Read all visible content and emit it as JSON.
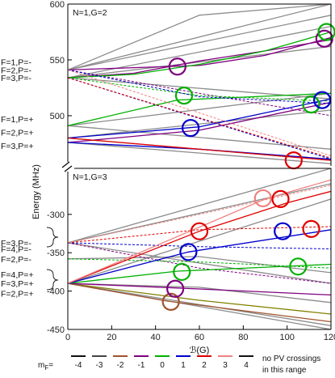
{
  "chart_data": [
    {
      "type": "line",
      "panel": "top",
      "panel_label": "N=1,G=2",
      "xlim": [
        0,
        120
      ],
      "ylim": [
        455,
        600
      ],
      "y_ticks": [
        600,
        550,
        500
      ],
      "grid": false,
      "state_labels": [
        {
          "text": "F=1,P=-",
          "y": 548
        },
        {
          "text": "F=2,P=-",
          "y": 541
        },
        {
          "text": "F=3,P=-",
          "y": 534
        },
        {
          "text": "F=1,P=+",
          "y": 497
        },
        {
          "text": "F=2,P=+",
          "y": 485
        },
        {
          "text": "F=3,P=+",
          "y": 473
        }
      ],
      "series": [
        {
          "color": "#8c8c8c",
          "dashed": false,
          "x": [
            0,
            120
          ],
          "y": [
            541,
            600
          ]
        },
        {
          "color": "#8c8c8c",
          "dashed": false,
          "x": [
            0,
            120
          ],
          "y": [
            541,
            590
          ]
        },
        {
          "color": "#8c8c8c",
          "dashed": false,
          "x": [
            0,
            120
          ],
          "y": [
            534,
            580
          ]
        },
        {
          "color": "#8c8c8c",
          "dashed": false,
          "x": [
            0,
            120
          ],
          "y": [
            534,
            562
          ]
        },
        {
          "color": "#8c8c8c",
          "dashed": false,
          "x": [
            0,
            120
          ],
          "y": [
            534,
            515
          ]
        },
        {
          "color": "#8c8c8c",
          "dashed": false,
          "x": [
            0,
            120
          ],
          "y": [
            491,
            520
          ]
        },
        {
          "color": "#8c8c8c",
          "dashed": false,
          "x": [
            0,
            120
          ],
          "y": [
            480,
            505
          ]
        },
        {
          "color": "#8c8c8c",
          "dashed": false,
          "x": [
            0,
            120
          ],
          "y": [
            480,
            460
          ]
        },
        {
          "color": "#8c8c8c",
          "dashed": false,
          "x": [
            0,
            120
          ],
          "y": [
            476,
            457
          ]
        },
        {
          "color": "#8c8c8c",
          "dashed": false,
          "x": [
            0,
            60,
            120
          ],
          "y": [
            541,
            590,
            600
          ]
        },
        {
          "color": "#8c8c8c",
          "dashed": false,
          "x": [
            0,
            120
          ],
          "y": [
            491,
            470
          ]
        },
        {
          "color": "#800080",
          "dashed": false,
          "x": [
            0,
            30,
            60,
            90,
            120
          ],
          "y": [
            534,
            538,
            549,
            558,
            568
          ]
        },
        {
          "color": "#800080",
          "dashed": false,
          "x": [
            0,
            30,
            60,
            90,
            120
          ],
          "y": [
            541,
            543,
            545,
            554,
            570
          ]
        },
        {
          "color": "#800080",
          "dashed": false,
          "x": [
            0,
            60,
            120
          ],
          "y": [
            476,
            487,
            512
          ]
        },
        {
          "color": "#800080",
          "dashed": true,
          "x": [
            0,
            60,
            120
          ],
          "y": [
            541,
            520,
            500
          ]
        },
        {
          "color": "#00b000",
          "dashed": false,
          "x": [
            0,
            30,
            60,
            90,
            120
          ],
          "y": [
            534,
            537,
            546,
            558,
            575
          ]
        },
        {
          "color": "#00b000",
          "dashed": false,
          "x": [
            0,
            50,
            120
          ],
          "y": [
            491,
            514,
            520
          ]
        },
        {
          "color": "#00b000",
          "dashed": true,
          "x": [
            0,
            60,
            120
          ],
          "y": [
            534,
            518,
            513
          ]
        },
        {
          "color": "#0000cc",
          "dashed": false,
          "x": [
            0,
            60,
            120
          ],
          "y": [
            480,
            490,
            515
          ]
        },
        {
          "color": "#0000cc",
          "dashed": false,
          "x": [
            0,
            60,
            120
          ],
          "y": [
            476,
            470,
            461
          ]
        },
        {
          "color": "#0000cc",
          "dashed": true,
          "x": [
            0,
            60,
            120
          ],
          "y": [
            541,
            517,
            511
          ]
        },
        {
          "color": "#0000cc",
          "dashed": true,
          "x": [
            0,
            120
          ],
          "y": [
            534,
            461
          ]
        },
        {
          "color": "#e00000",
          "dashed": false,
          "x": [
            0,
            60,
            120
          ],
          "y": [
            480,
            470,
            460
          ]
        },
        {
          "color": "#e00000",
          "dashed": true,
          "x": [
            0,
            120
          ],
          "y": [
            534,
            462
          ]
        },
        {
          "color": "#f08080",
          "dashed": true,
          "x": [
            0,
            120
          ],
          "y": [
            541,
            464
          ]
        }
      ],
      "crossings": [
        {
          "x": 50,
          "y": 544,
          "color": "#800080"
        },
        {
          "x": 53,
          "y": 518,
          "color": "#00b000"
        },
        {
          "x": 56,
          "y": 489,
          "color": "#0000cc"
        },
        {
          "x": 103,
          "y": 460,
          "color": "#e00000"
        },
        {
          "x": 111,
          "y": 510,
          "color": "#00b000"
        },
        {
          "x": 116,
          "y": 514,
          "color": "#0000cc"
        },
        {
          "x": 117,
          "y": 569,
          "color": "#800080"
        },
        {
          "x": 118,
          "y": 575,
          "color": "#00b000"
        }
      ]
    },
    {
      "type": "line",
      "panel": "bottom",
      "panel_label": "N=1,G=3",
      "xlim": [
        0,
        120
      ],
      "ylim": [
        -450,
        -240
      ],
      "y_ticks": [
        -300,
        -350,
        -400,
        -450
      ],
      "x_ticks": [
        0,
        20,
        40,
        60,
        80,
        100,
        120
      ],
      "grid": false,
      "state_labels": [
        {
          "text": "F=3,P=-",
          "y": -337
        },
        {
          "text": "F=4,P=-",
          "y": -345
        },
        {
          "text": "F=2,P=-",
          "y": -358
        },
        {
          "text": "F=4,P=+",
          "y": -378
        },
        {
          "text": "F=3,P=+",
          "y": -390
        },
        {
          "text": "F=2,P=+",
          "y": -403
        }
      ],
      "series": [
        {
          "color": "#8c8c8c",
          "dashed": false,
          "x": [
            0,
            120
          ],
          "y": [
            -337,
            -240
          ]
        },
        {
          "color": "#8c8c8c",
          "dashed": false,
          "x": [
            0,
            120
          ],
          "y": [
            -337,
            -260
          ]
        },
        {
          "color": "#8c8c8c",
          "dashed": false,
          "x": [
            0,
            120
          ],
          "y": [
            -390,
            -280
          ]
        },
        {
          "color": "#8c8c8c",
          "dashed": false,
          "x": [
            0,
            60,
            120
          ],
          "y": [
            -390,
            -395,
            -415
          ]
        },
        {
          "color": "#8c8c8c",
          "dashed": false,
          "x": [
            0,
            60,
            120
          ],
          "y": [
            -390,
            -420,
            -450
          ]
        },
        {
          "color": "#8c8c8c",
          "dashed": false,
          "x": [
            0,
            120
          ],
          "y": [
            -337,
            -390
          ]
        },
        {
          "color": "#8c8c8c",
          "dashed": false,
          "x": [
            0,
            120
          ],
          "y": [
            -390,
            -445
          ]
        },
        {
          "color": "#8c8c8c",
          "dashed": false,
          "x": [
            0,
            60,
            120
          ],
          "y": [
            -358,
            -355,
            -376
          ]
        },
        {
          "color": "#808000",
          "dashed": false,
          "x": [
            0,
            60,
            120
          ],
          "y": [
            -390,
            -412,
            -430
          ]
        },
        {
          "color": "#a0522d",
          "dashed": false,
          "x": [
            0,
            45,
            120
          ],
          "y": [
            -390,
            -413,
            -440
          ]
        },
        {
          "color": "#800080",
          "dashed": false,
          "x": [
            0,
            50,
            120
          ],
          "y": [
            -390,
            -396,
            -405
          ]
        },
        {
          "color": "#800080",
          "dashed": true,
          "x": [
            0,
            60,
            120
          ],
          "y": [
            -337,
            -370,
            -390
          ]
        },
        {
          "color": "#00b000",
          "dashed": false,
          "x": [
            0,
            50,
            120
          ],
          "y": [
            -390,
            -374,
            -365
          ]
        },
        {
          "color": "#00b000",
          "dashed": true,
          "x": [
            0,
            60,
            120
          ],
          "y": [
            -358,
            -362,
            -370
          ]
        },
        {
          "color": "#0000cc",
          "dashed": false,
          "x": [
            0,
            55,
            120
          ],
          "y": [
            -390,
            -349,
            -320
          ]
        },
        {
          "color": "#0000cc",
          "dashed": true,
          "x": [
            0,
            60,
            120
          ],
          "y": [
            -337,
            -342,
            -345
          ]
        },
        {
          "color": "#e00000",
          "dashed": false,
          "x": [
            0,
            60,
            100,
            120
          ],
          "y": [
            -390,
            -322,
            -285,
            -270
          ]
        },
        {
          "color": "#e00000",
          "dashed": true,
          "x": [
            0,
            60,
            120
          ],
          "y": [
            -337,
            -320,
            -316
          ]
        },
        {
          "color": "#f08080",
          "dashed": true,
          "x": [
            0,
            60,
            120
          ],
          "y": [
            -337,
            -300,
            -262
          ]
        },
        {
          "color": "#f08080",
          "dashed": false,
          "x": [
            0,
            90,
            120
          ],
          "y": [
            -390,
            -280,
            -255
          ]
        }
      ],
      "crossings": [
        {
          "x": 47,
          "y": -414,
          "color": "#a0522d"
        },
        {
          "x": 49,
          "y": -397,
          "color": "#800080"
        },
        {
          "x": 52,
          "y": -375,
          "color": "#00b000"
        },
        {
          "x": 55,
          "y": -349,
          "color": "#0000cc"
        },
        {
          "x": 60,
          "y": -322,
          "color": "#e00000"
        },
        {
          "x": 89,
          "y": -279,
          "color": "#f08080"
        },
        {
          "x": 97,
          "y": -280,
          "color": "#e00000"
        },
        {
          "x": 98,
          "y": -322,
          "color": "#0000cc"
        },
        {
          "x": 105,
          "y": -368,
          "color": "#00b000"
        },
        {
          "x": 111,
          "y": -319,
          "color": "#e00000"
        }
      ]
    }
  ],
  "ylabel": "Energy (MHz)",
  "xlabel": "ℬ(G)",
  "legend": {
    "label": "m",
    "label_sub": "F",
    "label_suffix": "=",
    "entries": [
      {
        "label": "-4",
        "color": "#111111"
      },
      {
        "label": "-3",
        "color": "#444444"
      },
      {
        "label": "-2",
        "color": "#a0522d"
      },
      {
        "label": "-1",
        "color": "#800080"
      },
      {
        "label": "0",
        "color": "#00b000"
      },
      {
        "label": "1",
        "color": "#0000cc"
      },
      {
        "label": "2",
        "color": "#e00000"
      },
      {
        "label": "3",
        "color": "#f08080"
      },
      {
        "label": "4",
        "color": "#111111"
      }
    ]
  },
  "note": {
    "line1": "no PV crossings",
    "line2": "in this range"
  }
}
